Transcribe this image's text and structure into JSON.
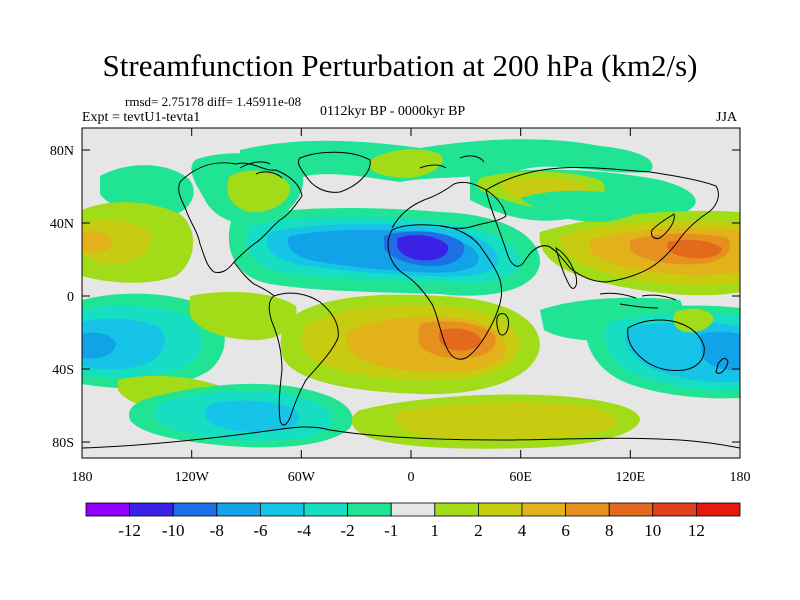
{
  "title": "Streamfunction Perturbation at 200 hPa (km2/s)",
  "stats_line": "rmsd= 2.75178 diff= 1.45911e-08",
  "experiment": "Expt = tevtU1-tevta1",
  "period": "0112kyr BP - 0000kyr BP",
  "season": "JJA",
  "lat_ticks": [
    "80N",
    "40N",
    "0",
    "40S",
    "80S"
  ],
  "lon_ticks": [
    "180",
    "120W",
    "60W",
    "0",
    "60E",
    "120E",
    "180"
  ],
  "colorbar": {
    "labels": [
      "-12",
      "-10",
      "-8",
      "-6",
      "-4",
      "-2",
      "-1",
      "1",
      "2",
      "4",
      "6",
      "8",
      "10",
      "12"
    ],
    "colors": [
      "#8f00ff",
      "#3a21e5",
      "#1e6ee6",
      "#12a2e8",
      "#16c4e8",
      "#16dec3",
      "#21e394",
      "#e6e6e6",
      "#a2db18",
      "#c8cc10",
      "#e1b21a",
      "#e6911f",
      "#e36a1c",
      "#e0411c",
      "#e6190d"
    ]
  },
  "map_data": {
    "projection": "cylindrical-equidistant",
    "lon_range": [
      -180,
      180
    ],
    "lat_range": [
      -90,
      90
    ],
    "field": "200 hPa streamfunction perturbation",
    "units": "km2/s"
  }
}
